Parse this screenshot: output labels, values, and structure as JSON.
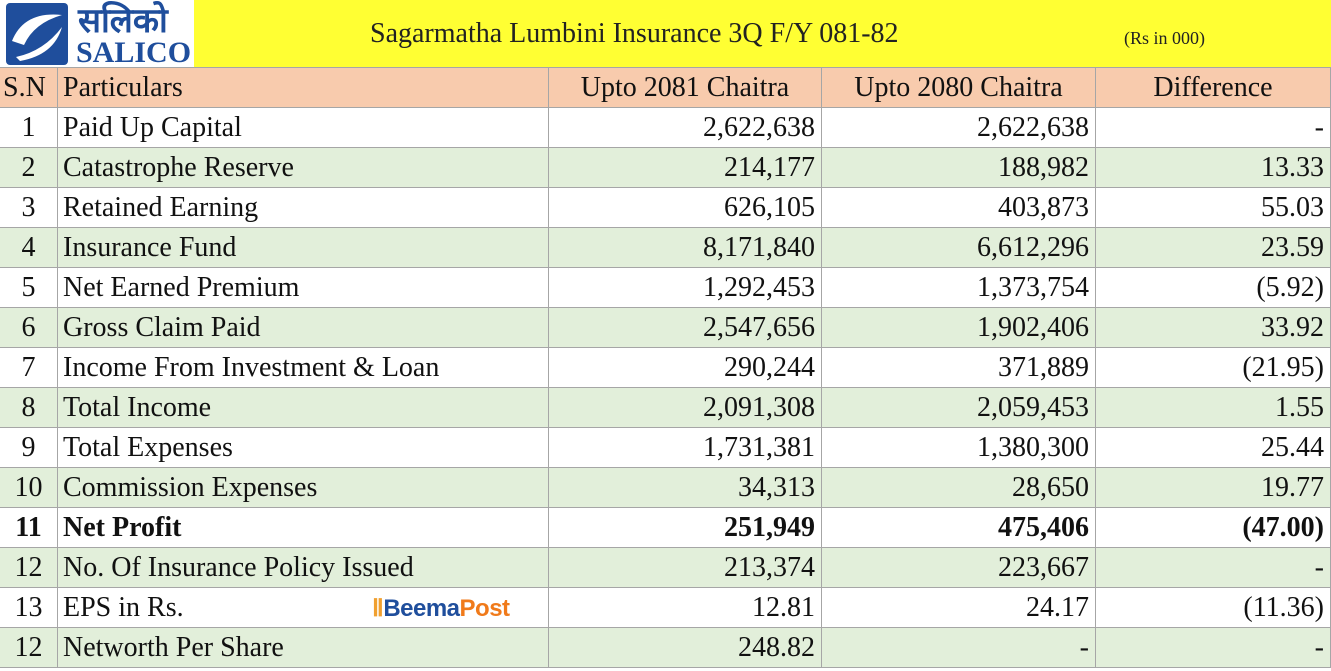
{
  "logo": {
    "native": "सलिको",
    "latin": "SALICO"
  },
  "header": {
    "title": "Sagarmatha Lumbini Insurance 3Q F/Y 081-82",
    "unit": "(Rs in 000)"
  },
  "watermark": {
    "first": "Beema",
    "second": "Post"
  },
  "table": {
    "columns": [
      "S.N",
      "Particulars",
      "Upto 2081 Chaitra",
      "Upto 2080 Chaitra",
      "Difference"
    ],
    "rows": [
      {
        "cells": [
          "1",
          "Paid Up Capital",
          "2,622,638",
          "2,622,638",
          "-"
        ]
      },
      {
        "cells": [
          "2",
          "Catastrophe Reserve",
          "214,177",
          "188,982",
          "13.33"
        ]
      },
      {
        "cells": [
          "3",
          "Retained Earning",
          "626,105",
          "403,873",
          "55.03"
        ]
      },
      {
        "cells": [
          "4",
          "Insurance Fund",
          "8,171,840",
          "6,612,296",
          "23.59"
        ]
      },
      {
        "cells": [
          "5",
          "Net Earned Premium",
          "1,292,453",
          "1,373,754",
          "(5.92)"
        ]
      },
      {
        "cells": [
          "6",
          "Gross Claim Paid",
          "2,547,656",
          "1,902,406",
          "33.92"
        ]
      },
      {
        "cells": [
          "7",
          "Income From Investment & Loan",
          "290,244",
          "371,889",
          "(21.95)"
        ]
      },
      {
        "cells": [
          "8",
          "Total Income",
          "2,091,308",
          "2,059,453",
          "1.55"
        ]
      },
      {
        "cells": [
          "9",
          "Total Expenses",
          "1,731,381",
          "1,380,300",
          "25.44"
        ]
      },
      {
        "cells": [
          "10",
          "Commission Expenses",
          "34,313",
          "28,650",
          "19.77"
        ]
      },
      {
        "cells": [
          "11",
          "Net Profit",
          "251,949",
          "475,406",
          "(47.00)"
        ],
        "bold": true
      },
      {
        "cells": [
          "12",
          "No. Of Insurance Policy Issued",
          "213,374",
          "223,667",
          "-"
        ]
      },
      {
        "cells": [
          "13",
          "EPS in Rs.",
          "12.81",
          "24.17",
          "(11.36)"
        ]
      },
      {
        "cells": [
          "12",
          "Networth Per Share",
          "248.82",
          "-",
          "-"
        ]
      }
    ]
  }
}
